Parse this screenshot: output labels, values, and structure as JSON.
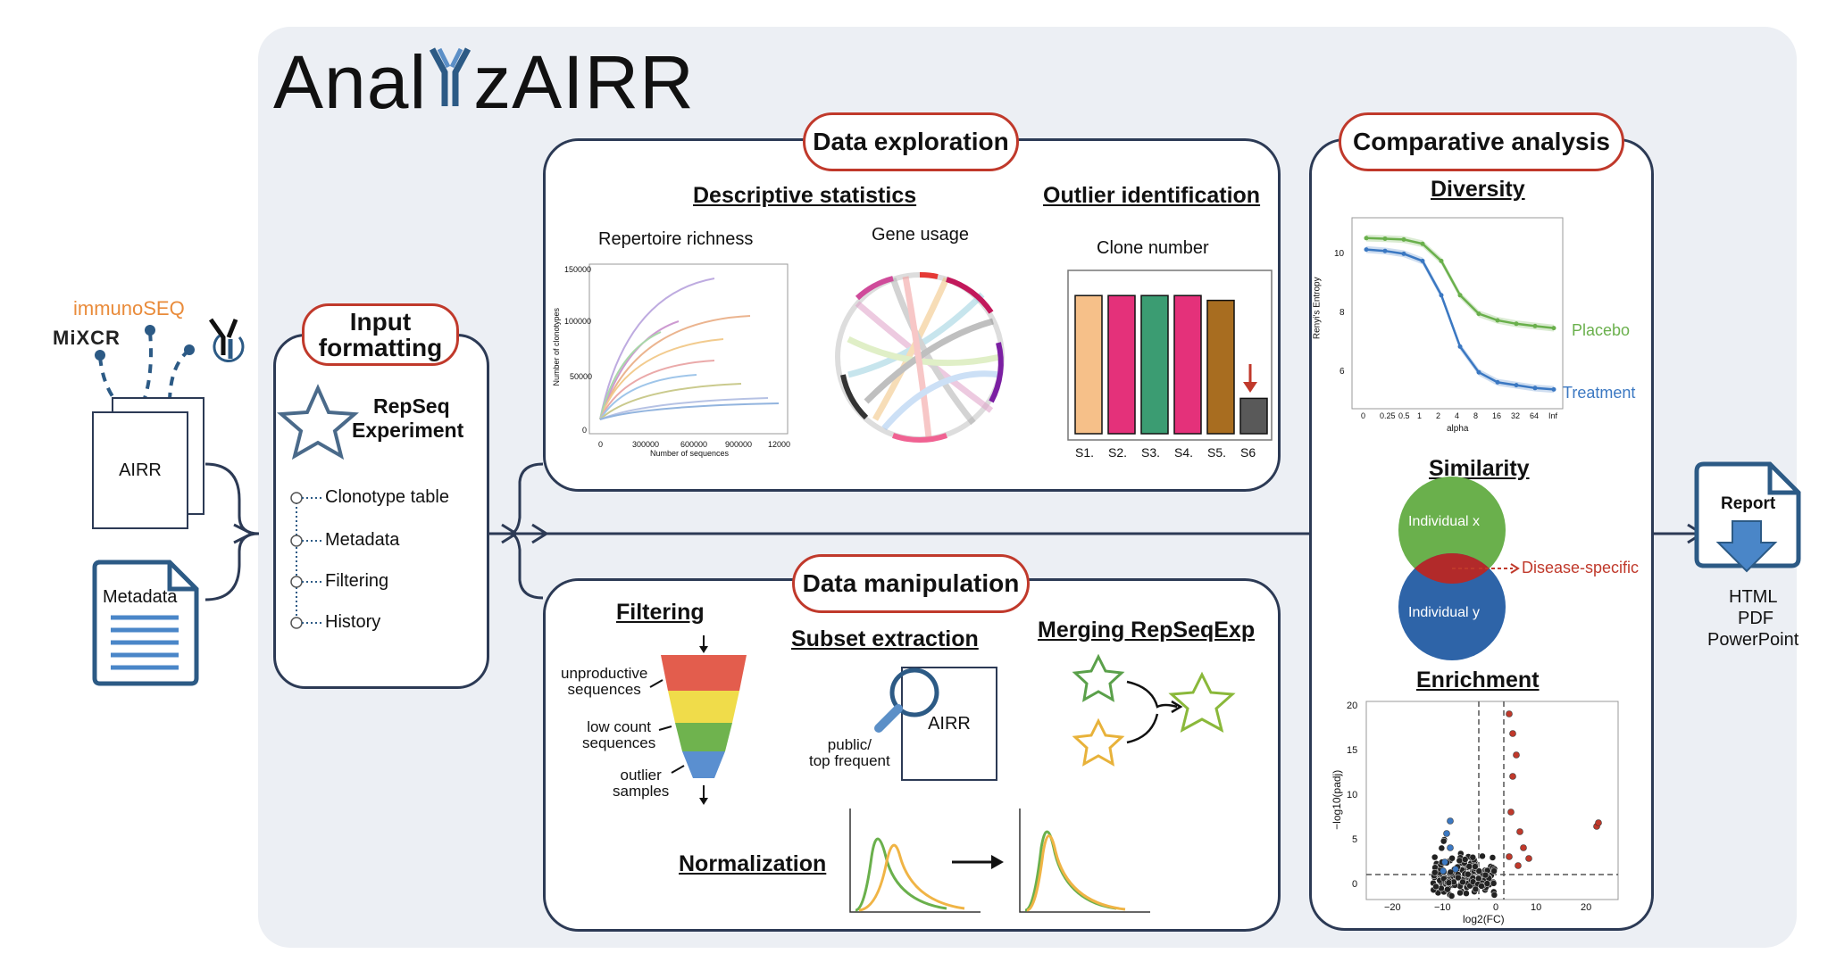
{
  "logo": {
    "text_left": "Anal",
    "text_right": "zAIRR"
  },
  "sources": {
    "immunoseq": "immunoSEQ",
    "mixcr": "MiXCR",
    "airr_doc": "AIRR",
    "metadata_doc": "Metadata"
  },
  "input": {
    "title": "Input formatting",
    "title_line1": "Input",
    "title_line2": "formatting",
    "object_line1": "RepSeq",
    "object_line2": "Experiment",
    "items": [
      "Clonotype table",
      "Metadata",
      "Filtering",
      "History"
    ]
  },
  "exploration": {
    "title": "Data exploration",
    "descriptive": "Descriptive statistics",
    "outlier": "Outlier identification",
    "richness": "Repertoire richness",
    "gene_usage": "Gene usage",
    "clone_number": "Clone number",
    "samples": [
      "S1.",
      "S2.",
      "S3.",
      "S4.",
      "S5.",
      "S6"
    ],
    "clone_values": [
      0.86,
      0.86,
      0.86,
      0.86,
      0.83,
      0.22
    ],
    "clone_colors": [
      "#f6c089",
      "#e4317a",
      "#3b9c72",
      "#e4317a",
      "#a86d20",
      "#595959"
    ],
    "richness_yticks": [
      "150000",
      "100000",
      "50000",
      "0"
    ],
    "richness_xticks": [
      "0",
      "300000",
      "600000",
      "900000",
      "12000"
    ],
    "richness_xlabel": "Number of sequences",
    "richness_ylabel": "Number of clonotypes"
  },
  "manipulation": {
    "title": "Data manipulation",
    "filtering": "Filtering",
    "subset": "Subset extraction",
    "merging": "Merging RepSeqExp",
    "normalization": "Normalization",
    "filter_labels": [
      {
        "line1": "unproductive",
        "line2": "sequences"
      },
      {
        "line1": "low count",
        "line2": "sequences"
      },
      {
        "line1": "outlier",
        "line2": "samples"
      }
    ],
    "subset_doc": "AIRR",
    "subset_label1": "public/",
    "subset_label2": "top frequent"
  },
  "comparative": {
    "title": "Comparative analysis",
    "diversity": "Diversity",
    "similarity": "Similarity",
    "enrichment": "Enrichment",
    "diversity_chart": {
      "ylabel": "Renyi's Entropy",
      "xlabel": "alpha",
      "xticks": [
        "0",
        "0.25",
        "0.5",
        "1",
        "2",
        "4",
        "8",
        "16",
        "32",
        "64",
        "Inf"
      ],
      "yticks": [
        "10",
        "8",
        "6"
      ],
      "placebo_label": "Placebo",
      "treatment_label": "Treatment"
    },
    "venn": {
      "x": "Individual x",
      "y": "Individual y",
      "overlap": "Disease-specific"
    },
    "volcano": {
      "xlabel": "log2(FC)",
      "ylabel": "−log10(padj)",
      "xticks": [
        "−20",
        "−10",
        "0",
        "10",
        "20"
      ],
      "yticks": [
        "20",
        "15",
        "10",
        "5",
        "0"
      ]
    }
  },
  "report": {
    "title": "Report",
    "formats": [
      "HTML",
      "PDF",
      "PowerPoint"
    ]
  },
  "colors": {
    "frame": "#2c3a55",
    "pill_border": "#c0392b",
    "panel": "#eceff4",
    "doc_blue": "#2c5a85",
    "placebo": "#6ab04c",
    "treatment": "#3b78c2"
  },
  "chart_data": [
    {
      "type": "bar",
      "title": "Clone number",
      "categories": [
        "S1.",
        "S2.",
        "S3.",
        "S4.",
        "S5.",
        "S6"
      ],
      "values": [
        0.86,
        0.86,
        0.86,
        0.86,
        0.83,
        0.22
      ]
    },
    {
      "type": "line",
      "ylabel": "Renyi's Entropy",
      "xlabel": "alpha",
      "x": [
        "0",
        "0.25",
        "0.5",
        "1",
        "2",
        "4",
        "8",
        "16",
        "32",
        "64",
        "Inf"
      ],
      "ylim": [
        5,
        11
      ],
      "series": [
        {
          "name": "Placebo",
          "values": [
            10.6,
            10.58,
            10.55,
            10.4,
            9.8,
            8.6,
            7.95,
            7.72,
            7.6,
            7.52,
            7.45
          ]
        },
        {
          "name": "Treatment",
          "values": [
            10.2,
            10.15,
            10.05,
            9.8,
            8.6,
            6.8,
            5.9,
            5.55,
            5.45,
            5.35,
            5.3
          ]
        }
      ]
    }
  ]
}
